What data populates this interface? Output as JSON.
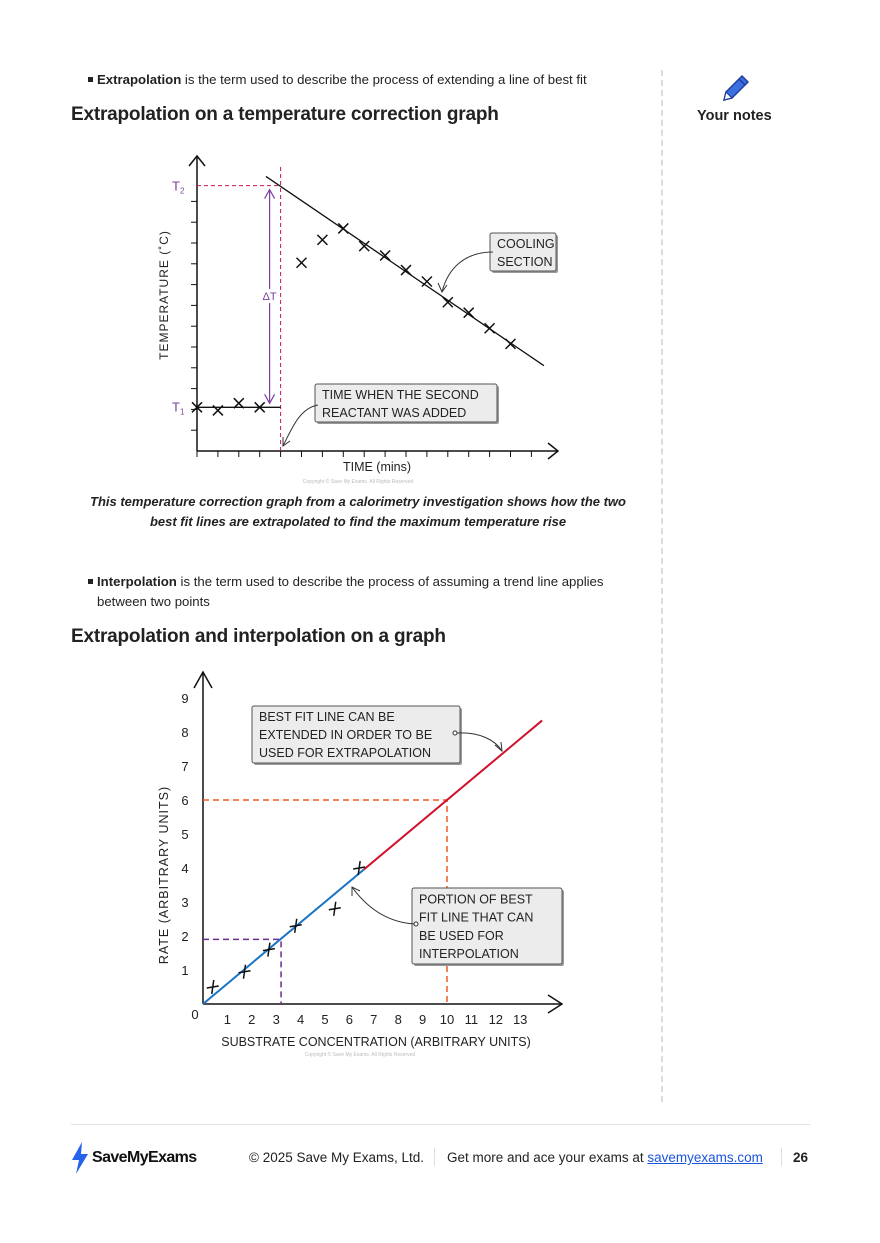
{
  "sidebar": {
    "notes_label": "Your notes",
    "icon": "pencil-icon"
  },
  "section1": {
    "bullet_term": "Extrapolation",
    "bullet_rest": " is the term used to describe the process of extending a line of best fit",
    "heading": "Extrapolation on a temperature correction graph",
    "caption_line1": "This temperature correction graph from a calorimetry investigation shows how the two",
    "caption_line2": "best fit lines are extrapolated to find the maximum temperature rise"
  },
  "section2": {
    "bullet_term": "Interpolation",
    "bullet_rest": " is the term used to describe the process of assuming a trend line applies",
    "bullet_rest2": "between two points",
    "heading": "Extrapolation and interpolation on a graph"
  },
  "chart_data": [
    {
      "type": "scatter",
      "xlabel": "TIME (mins)",
      "ylabel": "TEMPERATURE (˚C)",
      "y_labels": {
        "t1": "T",
        "t1_sub": "1",
        "t2": "T",
        "t2_sub": "2",
        "delta": "ΔT"
      },
      "points": [
        [
          0,
          2.1
        ],
        [
          1,
          1.95
        ],
        [
          2,
          2.3
        ],
        [
          3,
          2.1
        ],
        [
          5,
          9.05
        ],
        [
          6,
          10.15
        ],
        [
          7,
          10.7
        ],
        [
          8,
          9.85
        ],
        [
          9,
          9.4
        ],
        [
          10,
          8.7
        ],
        [
          11,
          8.15
        ],
        [
          12,
          7.15
        ],
        [
          13,
          6.65
        ],
        [
          14,
          5.9
        ],
        [
          15,
          5.15
        ]
      ],
      "cooling_line": [
        [
          3.3,
          13.2
        ],
        [
          16.6,
          4.1
        ]
      ],
      "baseline_y": 2.1,
      "t2_y": 12.76,
      "addition_time": 4,
      "annotations": {
        "cooling": [
          "COOLING",
          "SECTION"
        ],
        "addition": [
          "TIME  WHEN  THE  SECOND",
          "REACTANT  WAS  ADDED"
        ]
      },
      "copyright": "Copyright © Save My Exams. All Rights Reserved",
      "colors": {
        "guide": "#c2185b",
        "delta": "#7b3fa0"
      }
    },
    {
      "type": "line",
      "xlabel": "SUBSTRATE  CONCENTRATION  (ARBITRARY  UNITS)",
      "ylabel": "RATE  (ARBITRARY  UNITS)",
      "xlim": [
        0,
        13.9
      ],
      "ylim": [
        0,
        9
      ],
      "x_ticks": [
        "1",
        "2",
        "3",
        "4",
        "5",
        "6",
        "7",
        "8",
        "9",
        "10",
        "11",
        "12",
        "13"
      ],
      "y_ticks": [
        "1",
        "2",
        "3",
        "4",
        "5",
        "6",
        "7",
        "8",
        "9"
      ],
      "origin_label": "0",
      "points": [
        [
          0.4,
          0.5
        ],
        [
          1.7,
          0.95
        ],
        [
          2.7,
          1.6
        ],
        [
          3.8,
          2.3
        ],
        [
          5.4,
          2.8
        ],
        [
          6.4,
          4.0
        ]
      ],
      "interpolation_segment": [
        [
          0,
          0
        ],
        [
          6.6,
          3.96
        ]
      ],
      "extrapolation_segment": [
        [
          6.6,
          3.96
        ],
        [
          13.9,
          8.34
        ]
      ],
      "interpolation_read": {
        "x": 3.2,
        "y": 1.9
      },
      "extrapolation_read": {
        "x": 10,
        "y": 6
      },
      "annotations": {
        "extrapolation": [
          "BEST  FIT  LINE  CAN  BE",
          "EXTENDED  IN  ORDER  TO  BE",
          "USED  FOR  EXTRAPOLATION"
        ],
        "interpolation": [
          "PORTION  OF  BEST",
          "FIT  LINE  THAT  CAN",
          "BE  USED  FOR",
          "INTERPOLATION"
        ]
      },
      "copyright": "Copyright © Save My Exams. All Rights Reserved",
      "colors": {
        "interpolation": "#1a74c4",
        "extrapolation": "#d0112b",
        "extrap_guide": "#ee5a24",
        "interp_guide": "#6a2c91"
      }
    }
  ],
  "footer": {
    "logo_text": "SaveMyExams",
    "copyright": "© 2025 Save My Exams, Ltd.",
    "promo": "Get more and ace your exams at ",
    "link": "savemyexams.com",
    "page_number": "26",
    "brand_color": "#2563eb"
  }
}
